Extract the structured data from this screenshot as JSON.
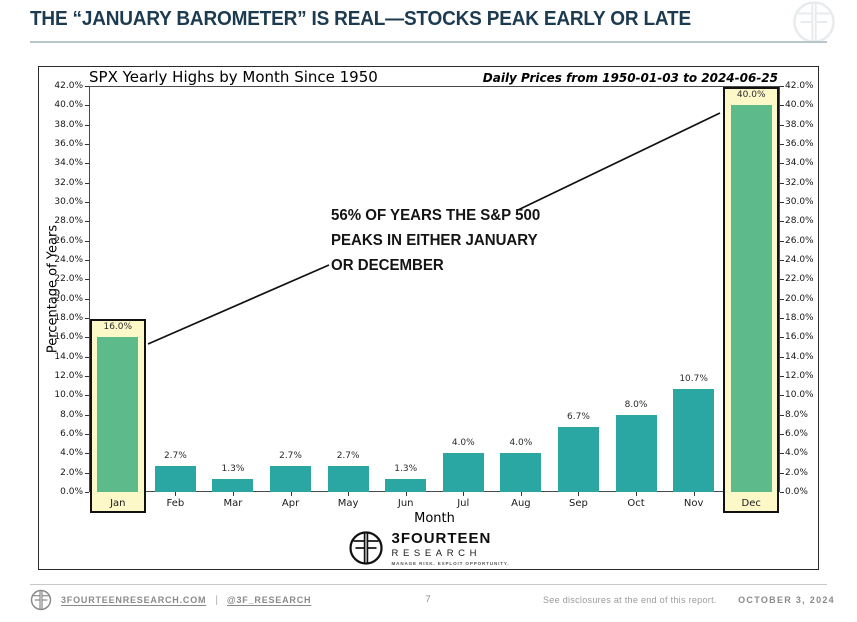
{
  "page": {
    "title": "THE “JANUARY BAROMETER” IS REAL—STOCKS PEAK EARLY OR LATE",
    "page_number": "7"
  },
  "brand": {
    "name_top": "3FOURTEEN",
    "name_bottom": "RESEARCH",
    "tagline": "MANAGE RISK. EXPLOIT OPPORTUNITY."
  },
  "footer": {
    "website": "3FOURTEENRESEARCH.COM",
    "separator": "|",
    "twitter": "@3F_RESEARCH",
    "disclosures": "See disclosures at the end of this report.",
    "date": "OCTOBER 3, 2024"
  },
  "chart_data": {
    "type": "bar",
    "title": "SPX Yearly Highs by Month Since 1950",
    "subtitle": "Daily Prices from 1950-01-03 to 2024-06-25",
    "xlabel": "Month",
    "ylabel": "Percentage of Years",
    "categories": [
      "Jan",
      "Feb",
      "Mar",
      "Apr",
      "May",
      "Jun",
      "Jul",
      "Aug",
      "Sep",
      "Oct",
      "Nov",
      "Dec"
    ],
    "values": [
      16.0,
      2.7,
      1.3,
      2.7,
      2.7,
      1.3,
      4.0,
      4.0,
      6.7,
      8.0,
      10.7,
      40.0
    ],
    "value_labels": [
      "16.0%",
      "2.7%",
      "1.3%",
      "2.7%",
      "2.7%",
      "1.3%",
      "4.0%",
      "4.0%",
      "6.7%",
      "8.0%",
      "10.7%",
      "40.0%"
    ],
    "ylim": [
      0,
      42
    ],
    "ytick_step": 2,
    "ytick_suffix": "%",
    "grid": false,
    "legend": "none",
    "highlighted_months": [
      "Jan",
      "Dec"
    ],
    "annotation_lines": [
      "56% OF YEARS THE S&P 500",
      "PEAKS IN EITHER JANUARY",
      "OR DECEMBER"
    ],
    "colors": {
      "bar": "#2ba7a3",
      "bar_highlight": "#5cba8b",
      "highlight_box_bg": "#fcf8c8",
      "headline": "#1d3b50"
    }
  }
}
